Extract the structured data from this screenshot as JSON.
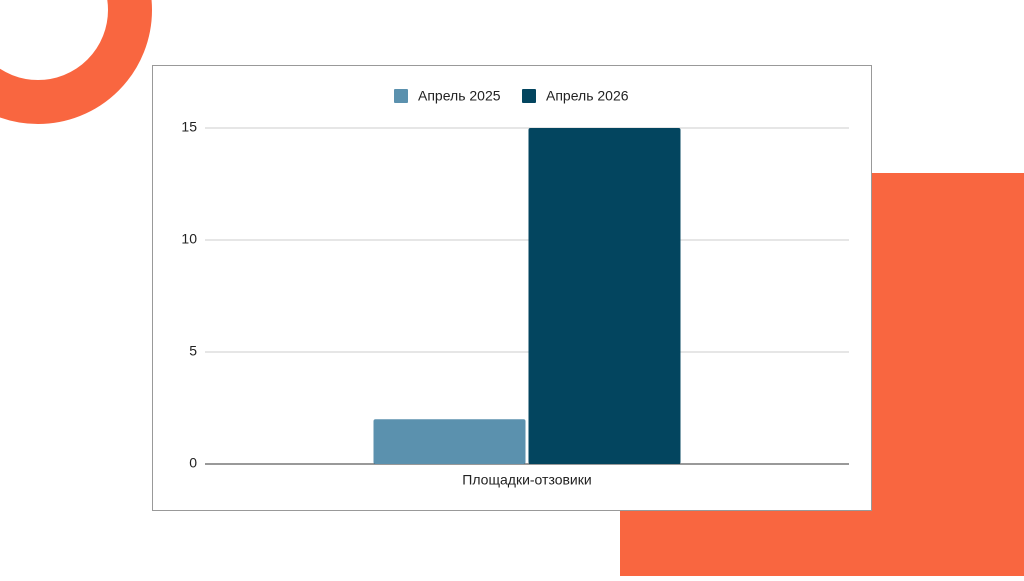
{
  "chart_data": {
    "type": "bar",
    "categories": [
      "Площадки-отзовики"
    ],
    "series": [
      {
        "name": "Апрель 2025",
        "color": "#5b91ae",
        "values": [
          2
        ]
      },
      {
        "name": "Апрель 2026",
        "color": "#03455f",
        "values": [
          15
        ]
      }
    ],
    "ylim": [
      0,
      15
    ],
    "yticks": [
      0,
      5,
      10,
      15
    ],
    "grid": true,
    "legend": "top"
  }
}
